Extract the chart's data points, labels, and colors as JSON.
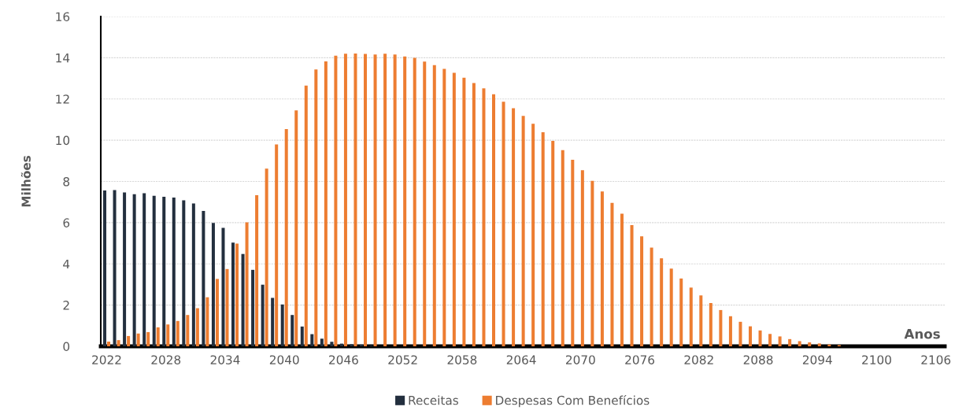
{
  "chart_data": {
    "type": "bar",
    "categories": [
      "2022",
      null,
      null,
      null,
      null,
      null,
      "2028",
      null,
      null,
      null,
      null,
      null,
      "2034",
      null,
      null,
      null,
      null,
      null,
      "2040",
      null,
      null,
      null,
      null,
      null,
      "2046",
      null,
      null,
      null,
      null,
      null,
      "2052",
      null,
      null,
      null,
      null,
      null,
      "2058",
      null,
      null,
      null,
      null,
      null,
      "2064",
      null,
      null,
      null,
      null,
      null,
      "2070",
      null,
      null,
      null,
      null,
      null,
      "2076",
      null,
      null,
      null,
      null,
      null,
      "2082",
      null,
      null,
      null,
      null,
      null,
      "2088",
      null,
      null,
      null,
      null,
      null,
      "2094",
      null,
      null,
      null,
      null,
      null,
      "2100",
      null,
      null,
      null,
      null,
      null,
      "2106"
    ],
    "series": [
      {
        "name": "Receitas",
        "color": "#232f3e",
        "values": [
          7.56,
          7.58,
          7.47,
          7.38,
          7.43,
          7.3,
          7.26,
          7.22,
          7.08,
          6.93,
          6.57,
          5.99,
          5.75,
          5.03,
          4.48,
          3.71,
          2.99,
          2.35,
          2.03,
          1.52,
          0.96,
          0.59,
          0.37,
          0.22,
          0.13,
          0.1,
          0.08,
          0.04,
          0,
          0,
          0,
          0,
          0,
          0,
          0,
          0,
          0,
          0,
          0,
          0,
          0,
          0,
          0,
          0,
          0,
          0,
          0,
          0,
          0,
          0,
          0,
          0,
          0,
          0,
          0,
          0,
          0,
          0,
          0,
          0,
          0,
          0,
          0,
          0,
          0,
          0,
          0,
          0,
          0,
          0,
          0,
          0,
          0,
          0,
          0,
          0,
          0,
          0,
          0,
          0,
          0,
          0,
          0,
          0,
          0
        ]
      },
      {
        "name": "Despesas Com Benefícios",
        "color": "#ed7d31",
        "values": [
          0.23,
          0.3,
          0.5,
          0.62,
          0.69,
          0.92,
          1.06,
          1.23,
          1.52,
          1.85,
          2.38,
          3.27,
          3.75,
          4.98,
          6.01,
          7.33,
          8.62,
          9.79,
          10.54,
          11.45,
          12.65,
          13.43,
          13.82,
          14.1,
          14.2,
          14.21,
          14.19,
          14.16,
          14.2,
          14.16,
          14.06,
          14.0,
          13.81,
          13.64,
          13.46,
          13.27,
          13.03,
          12.77,
          12.52,
          12.23,
          11.87,
          11.55,
          11.18,
          10.8,
          10.39,
          9.97,
          9.52,
          9.05,
          8.54,
          8.03,
          7.51,
          6.96,
          6.43,
          5.88,
          5.34,
          4.79,
          4.27,
          3.77,
          3.29,
          2.85,
          2.47,
          2.1,
          1.76,
          1.46,
          1.19,
          0.97,
          0.77,
          0.6,
          0.48,
          0.35,
          0.25,
          0.19,
          0.14,
          0.09,
          0.06,
          0,
          0,
          0,
          0,
          0,
          0,
          0,
          0,
          0,
          0
        ]
      }
    ],
    "xlabel": "Anos",
    "ylabel": "Milhões",
    "ylim": [
      0,
      16
    ],
    "yticks": [
      0,
      2,
      4,
      6,
      8,
      10,
      12,
      14,
      16
    ],
    "grid": "y",
    "legend": "bottom"
  }
}
